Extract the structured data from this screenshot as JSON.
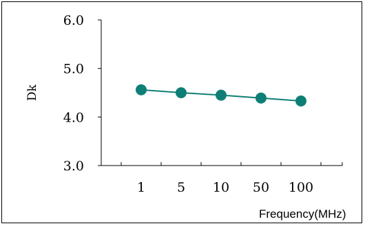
{
  "chart_data": {
    "type": "line",
    "title": "",
    "xlabel": "Frequency(MHz)",
    "ylabel": "Dk",
    "categories": [
      "1",
      "5",
      "10",
      "50",
      "100"
    ],
    "yticks": [
      "6.0",
      "5.0",
      "4.0",
      "3.0"
    ],
    "ytick_values": [
      6.0,
      5.0,
      4.0,
      3.0
    ],
    "ylim": [
      3.0,
      6.0
    ],
    "grid": false,
    "legend": "none",
    "series": [
      {
        "values": [
          4.56,
          4.5,
          4.45,
          4.39,
          4.33
        ]
      }
    ],
    "colors": {
      "series": "#0e7f76",
      "axis": "#000000"
    }
  }
}
